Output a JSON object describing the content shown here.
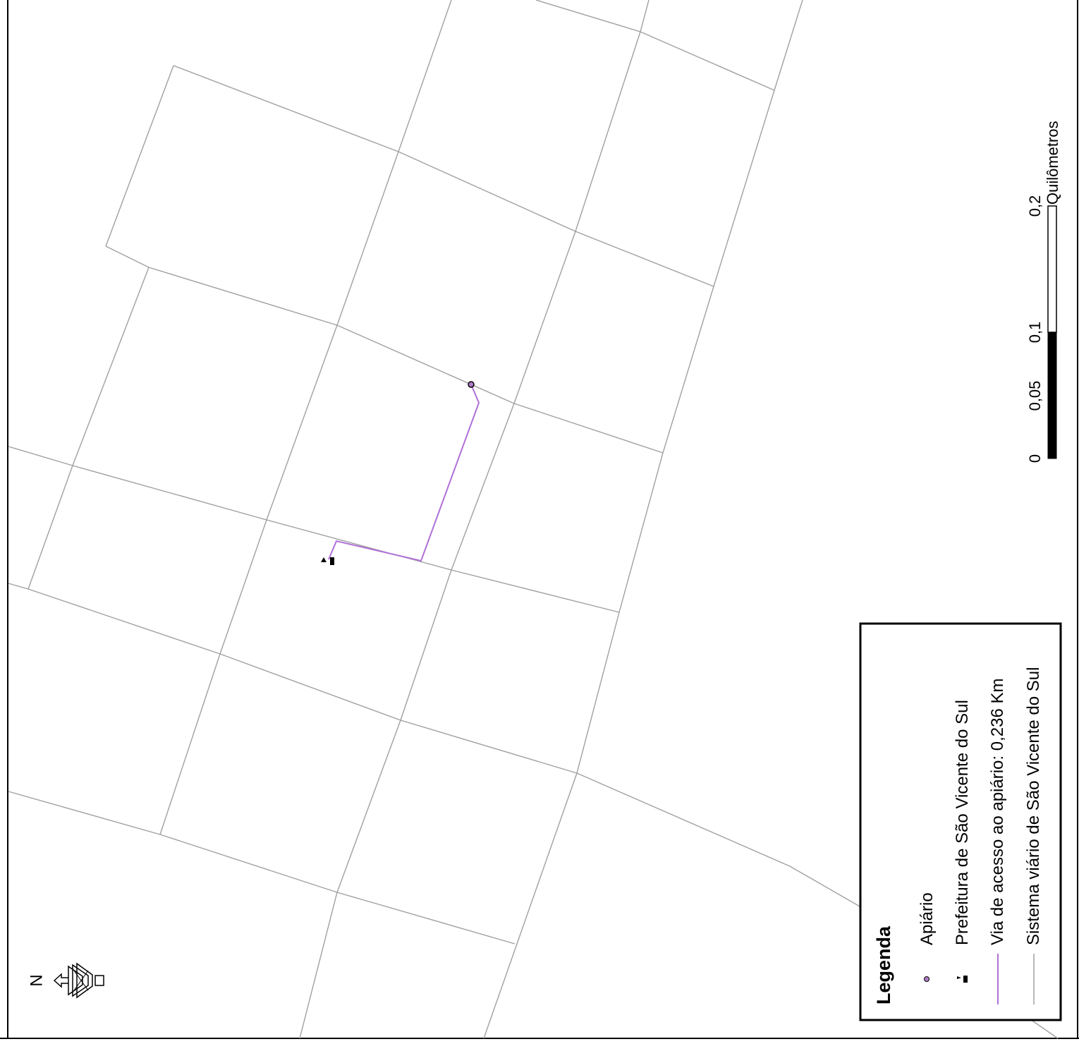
{
  "legend": {
    "title": "Legenda",
    "items": [
      {
        "label": "Apiário",
        "symbol": "circle-marker-icon",
        "color": "#b07cc6"
      },
      {
        "label": "Prefeitura de São Vicente do Sul",
        "symbol": "building-flag-icon",
        "color": "#000000"
      },
      {
        "label": "Via de acesso ao apiário: 0,236 Km",
        "symbol": "line",
        "color": "#b070d8"
      },
      {
        "label": "Sistema viário de São Vicente do Sul",
        "symbol": "line",
        "color": "#a0a0a0"
      }
    ]
  },
  "scale_bar": {
    "ticks": [
      "0",
      "0,05",
      "0,1",
      "0,2"
    ],
    "unit": "Quilômetros"
  },
  "north_arrow": {
    "letter": "N",
    "icon": "north-arrow-icon"
  },
  "colors": {
    "road": "#a0a0a0",
    "route": "#b070d8",
    "apiary": "#b07cc6",
    "frame": "#000000"
  }
}
